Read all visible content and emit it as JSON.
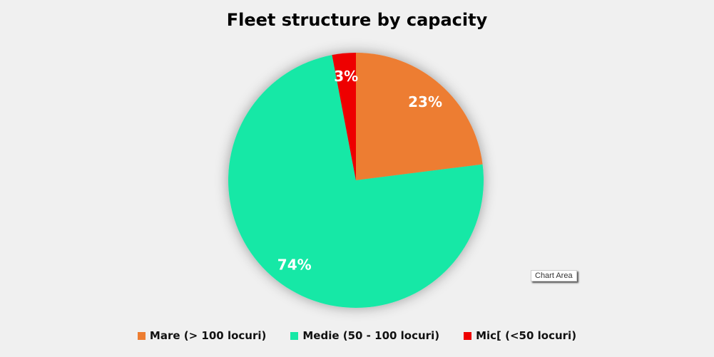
{
  "chart_data": {
    "type": "pie",
    "title": "Fleet structure by capacity",
    "series": [
      {
        "name": "Mare (> 100 locuri)",
        "value": 23,
        "label": "23%",
        "color": "#ed7d31"
      },
      {
        "name": "Medie (50 - 100 locuri)",
        "value": 74,
        "label": "74%",
        "color": "#17e8a6"
      },
      {
        "name": "Mic[ (<50 locuri)",
        "value": 3,
        "label": "3%",
        "color": "#ee0000"
      }
    ],
    "legend_position": "bottom"
  },
  "tooltip": "Chart Area"
}
